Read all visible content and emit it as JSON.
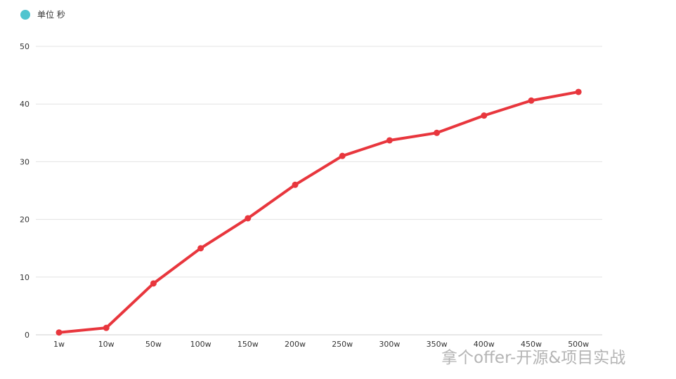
{
  "legend": {
    "label": "单位 秒",
    "dot_color": "#4fc4cf"
  },
  "watermark": "拿个offer-开源&项目实战",
  "chart_data": {
    "type": "line",
    "categories": [
      "1w",
      "10w",
      "50w",
      "100w",
      "150w",
      "200w",
      "250w",
      "300w",
      "350w",
      "400w",
      "450w",
      "500w"
    ],
    "series": [
      {
        "name": "单位 秒",
        "values": [
          0.4,
          1.2,
          8.9,
          15.0,
          20.2,
          26.0,
          31.0,
          33.7,
          35.0,
          38.0,
          40.6,
          42.1
        ]
      }
    ],
    "ylim": [
      0,
      50
    ],
    "yticks": [
      0,
      10,
      20,
      30,
      40,
      50
    ],
    "grid": true,
    "legend_position": "top-left",
    "line_color": "#e8363d"
  }
}
